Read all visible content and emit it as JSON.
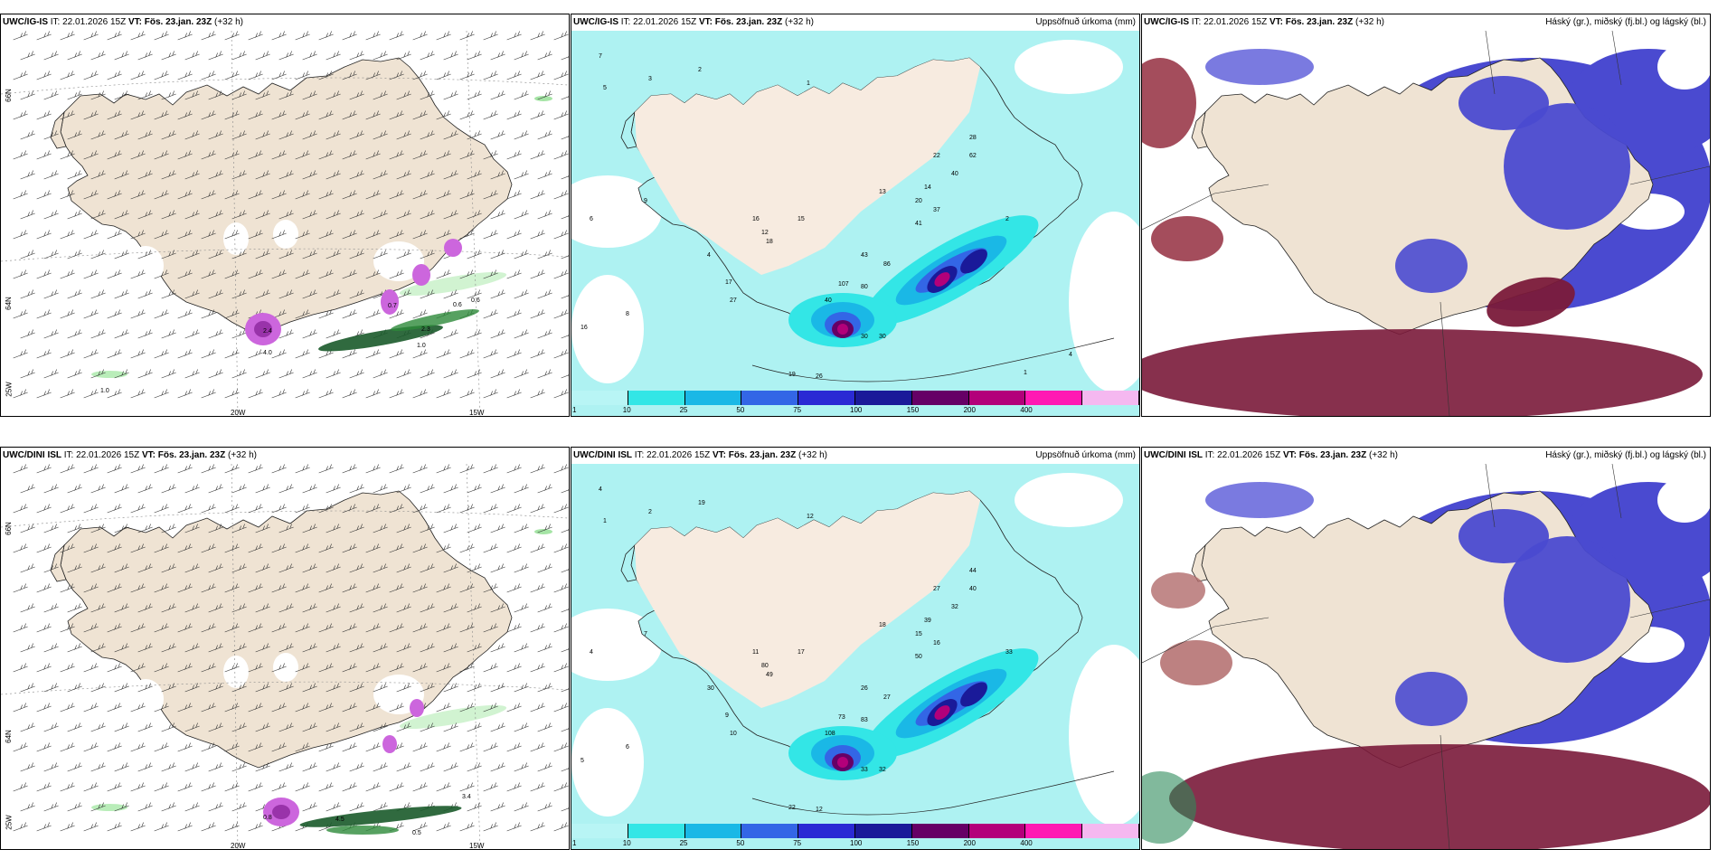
{
  "panels": [
    {
      "model": "UWC/IG-IS",
      "it": "IT: 22.01.2026 15Z",
      "vt_label": "VT:",
      "vt": "Fös. 23.jan. 23Z",
      "lead": "(+32 h)",
      "right": "",
      "type": "wind"
    },
    {
      "model": "UWC/IG-IS",
      "it": "IT: 22.01.2026 15Z",
      "vt_label": "VT:",
      "vt": "Fös. 23.jan. 23Z",
      "lead": "(+32 h)",
      "right": "Uppsöfnuð úrkoma (mm)",
      "type": "precip"
    },
    {
      "model": "UWC/IG-IS",
      "it": "IT: 22.01.2026 15Z",
      "vt_label": "VT:",
      "vt": "Fös. 23.jan. 23Z",
      "lead": "(+32 h)",
      "right": "Háský (gr.), miðský (fj.bl.) og lágský (bl.)",
      "type": "cloud"
    },
    {
      "model": "UWC/DINI ISL",
      "it": "IT: 22.01.2026 15Z",
      "vt_label": "VT:",
      "vt": "Fös. 23.jan. 23Z",
      "lead": "(+32 h)",
      "right": "",
      "type": "wind"
    },
    {
      "model": "UWC/DINI ISL",
      "it": "IT: 22.01.2026 15Z",
      "vt_label": "VT:",
      "vt": "Fös. 23.jan. 23Z",
      "lead": "(+32 h)",
      "right": "Uppsöfnuð úrkoma (mm)",
      "type": "precip"
    },
    {
      "model": "UWC/DINI ISL",
      "it": "IT: 22.01.2026 15Z",
      "vt_label": "VT:",
      "vt": "Fös. 23.jan. 23Z",
      "lead": "(+32 h)",
      "right": "Háský (gr.), miðský (fj.bl.) og lágský (bl.)",
      "type": "cloud"
    }
  ],
  "axis_labels": {
    "lon1": "20W",
    "lon2": "15W",
    "lat66": "66N",
    "lat64": "64N",
    "lat25": "25W"
  },
  "wind_values_top": [
    "0.6",
    "0.6",
    "0.7",
    "2.3",
    "1.0",
    "1.0",
    "2.4",
    "4.0"
  ],
  "wind_values_bottom": [
    "0.5",
    "4.5",
    "0.8",
    "3.4"
  ],
  "precip_values_top": [
    "7",
    "5",
    "3",
    "2",
    "1",
    "22",
    "28",
    "62",
    "40",
    "14",
    "20",
    "37",
    "13",
    "16",
    "15",
    "43",
    "86",
    "107",
    "40",
    "30",
    "30",
    "19",
    "26",
    "27",
    "17",
    "16",
    "8",
    "6",
    "9",
    "4",
    "2",
    "12",
    "18",
    "80",
    "41",
    "4",
    "1"
  ],
  "precip_values_bottom": [
    "4",
    "1",
    "2",
    "19",
    "12",
    "27",
    "44",
    "40",
    "32",
    "39",
    "15",
    "16",
    "18",
    "11",
    "17",
    "26",
    "27",
    "73",
    "108",
    "33",
    "32",
    "22",
    "12",
    "10",
    "9",
    "5",
    "6",
    "4",
    "7",
    "30",
    "33",
    "80",
    "49",
    "83",
    "50"
  ],
  "colorbar": {
    "labels": [
      "1",
      "10",
      "25",
      "50",
      "75",
      "100",
      "150",
      "200",
      "400"
    ],
    "colors": [
      "#b8f5f5",
      "#33e6e6",
      "#1ab8e6",
      "#3366e6",
      "#2a2ad4",
      "#1a1a99",
      "#660066",
      "#b3007a",
      "#ff1ab3",
      "#f5b8f0"
    ]
  },
  "colors": {
    "land": "#efe3d3",
    "sea": "#ffffff",
    "cyan": "#aef2f2",
    "blue": "#4a4ad0",
    "red": "#7a1a3a"
  }
}
